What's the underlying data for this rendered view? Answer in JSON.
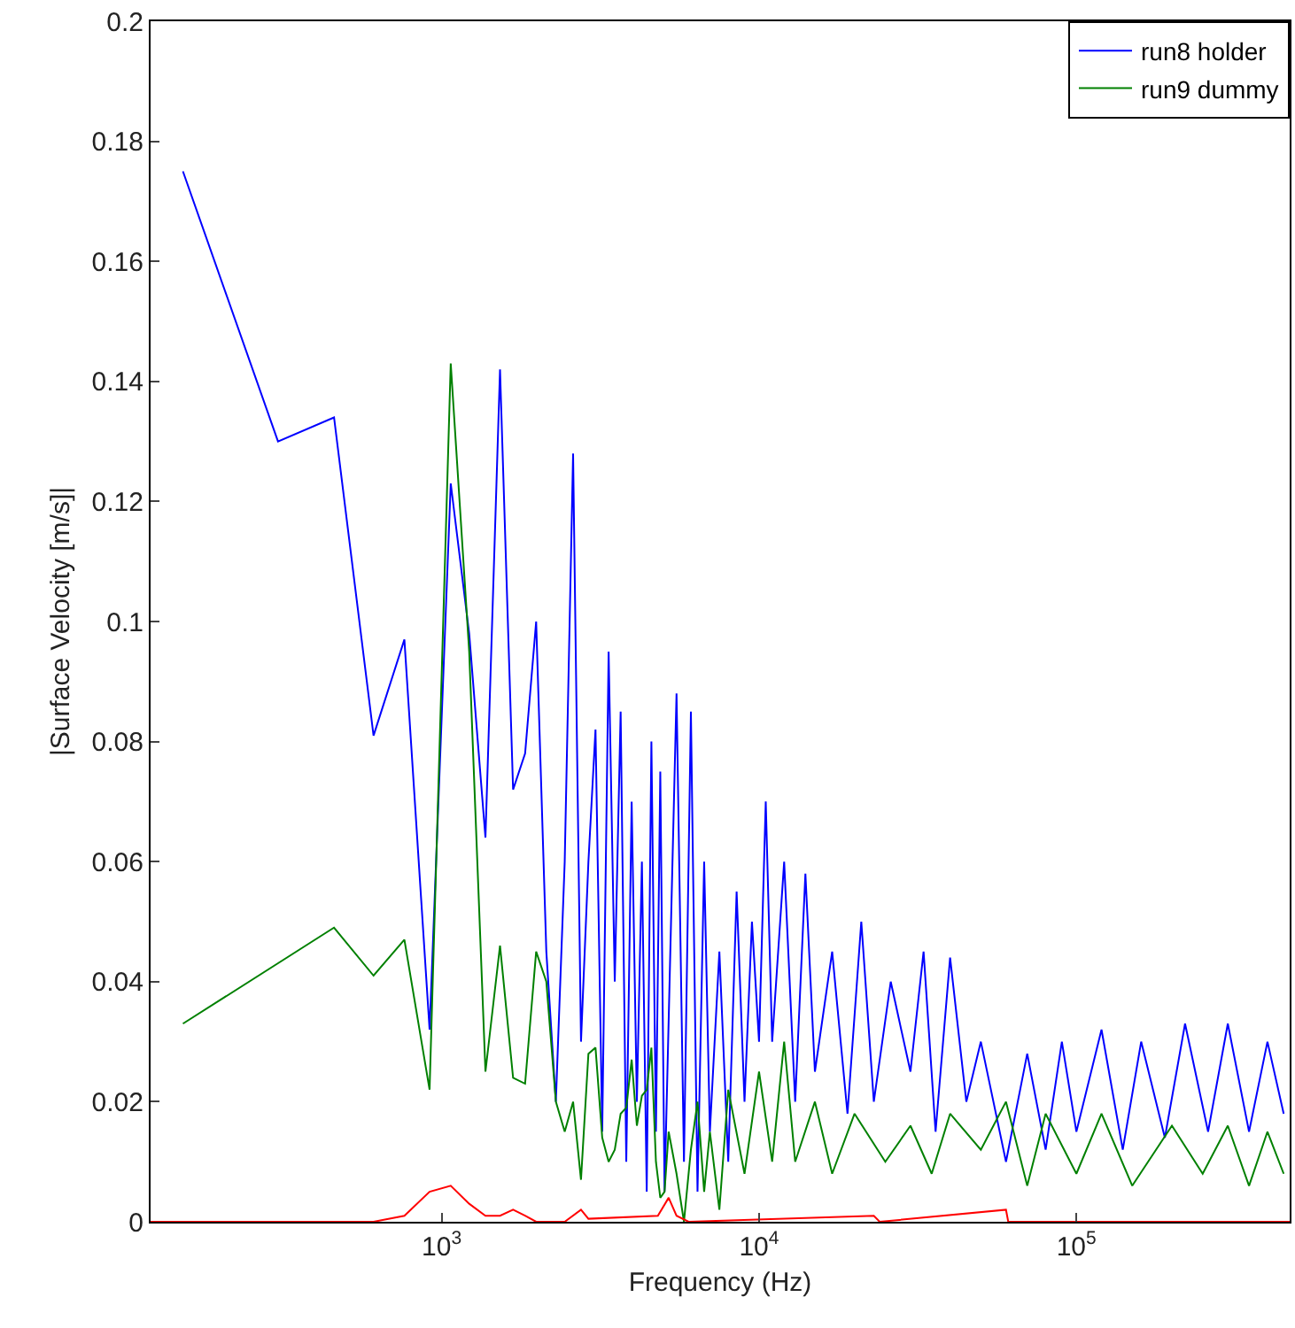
{
  "chart_data": {
    "type": "line",
    "xlabel": "Frequency (Hz)",
    "ylabel": "|Surface Velocity [m/s]|",
    "log": "x",
    "xlim": [
      121,
      470000
    ],
    "ylim": [
      0,
      0.2
    ],
    "xticks": [
      {
        "value": 1000,
        "label": "10$^{3}$"
      },
      {
        "value": 10000,
        "label": "10$^{4}$"
      },
      {
        "value": 100000,
        "label": "10$^{5}$"
      }
    ],
    "yticks": [
      0,
      0.02,
      0.04,
      0.06,
      0.08,
      0.1,
      0.12,
      0.14,
      0.16,
      0.18,
      0.2
    ],
    "legend": "top right",
    "marker": "none",
    "line_style": "solid",
    "series": [
      {
        "name": "run8 holder",
        "color": "#0000ff",
        "x": [
          153,
          305,
          458,
          610,
          763,
          916,
          1068,
          1221,
          1374,
          1527,
          1679,
          1832,
          1985,
          2137,
          2290,
          2442,
          2595,
          2748,
          2900,
          3053,
          3206,
          3358,
          3511,
          3664,
          3817,
          3969,
          4122,
          4275,
          4427,
          4580,
          4733,
          4885,
          5038,
          5496,
          5800,
          6100,
          6400,
          6716,
          7000,
          7500,
          8000,
          8500,
          9000,
          9500,
          10000,
          10500,
          11000,
          12000,
          13000,
          14000,
          15000,
          17000,
          19000,
          21000,
          23000,
          26000,
          30000,
          33000,
          36000,
          40000,
          45000,
          50000,
          60000,
          70000,
          80000,
          90000,
          100000,
          120000,
          140000,
          160000,
          190000,
          220000,
          260000,
          300000,
          350000,
          400000,
          450000
        ],
        "values": [
          0.175,
          0.13,
          0.134,
          0.081,
          0.097,
          0.032,
          0.123,
          0.098,
          0.064,
          0.142,
          0.072,
          0.078,
          0.1,
          0.045,
          0.02,
          0.06,
          0.128,
          0.03,
          0.06,
          0.082,
          0.015,
          0.095,
          0.04,
          0.085,
          0.01,
          0.07,
          0.02,
          0.06,
          0.005,
          0.08,
          0.015,
          0.075,
          0.005,
          0.088,
          0.01,
          0.085,
          0.005,
          0.06,
          0.015,
          0.045,
          0.01,
          0.055,
          0.02,
          0.05,
          0.03,
          0.07,
          0.03,
          0.06,
          0.02,
          0.058,
          0.025,
          0.045,
          0.018,
          0.05,
          0.02,
          0.04,
          0.025,
          0.045,
          0.015,
          0.044,
          0.02,
          0.03,
          0.01,
          0.028,
          0.012,
          0.03,
          0.015,
          0.032,
          0.012,
          0.03,
          0.014,
          0.033,
          0.015,
          0.033,
          0.015,
          0.03,
          0.018
        ]
      },
      {
        "name": "run9 dummy",
        "color": "#008000",
        "x": [
          153,
          458,
          610,
          763,
          916,
          1068,
          1221,
          1374,
          1527,
          1679,
          1832,
          1985,
          2137,
          2290,
          2442,
          2595,
          2748,
          2900,
          3053,
          3206,
          3358,
          3511,
          3664,
          3817,
          3969,
          4122,
          4275,
          4427,
          4580,
          4733,
          4885,
          5038,
          5191,
          5496,
          5800,
          6100,
          6400,
          6716,
          7000,
          7500,
          8000,
          9000,
          10000,
          11000,
          12000,
          13000,
          15000,
          17000,
          20000,
          25000,
          30000,
          35000,
          40000,
          50000,
          60000,
          70000,
          80000,
          100000,
          120000,
          150000,
          200000,
          250000,
          300000,
          350000,
          400000,
          450000
        ],
        "values": [
          0.033,
          0.049,
          0.041,
          0.047,
          0.022,
          0.143,
          0.095,
          0.025,
          0.046,
          0.024,
          0.023,
          0.045,
          0.04,
          0.02,
          0.015,
          0.02,
          0.007,
          0.028,
          0.029,
          0.014,
          0.01,
          0.012,
          0.018,
          0.019,
          0.027,
          0.016,
          0.021,
          0.022,
          0.029,
          0.01,
          0.004,
          0.005,
          0.015,
          0.008,
          0.0,
          0.012,
          0.02,
          0.005,
          0.015,
          0.002,
          0.022,
          0.008,
          0.025,
          0.01,
          0.03,
          0.01,
          0.02,
          0.008,
          0.018,
          0.01,
          0.016,
          0.008,
          0.018,
          0.012,
          0.02,
          0.006,
          0.018,
          0.008,
          0.018,
          0.006,
          0.016,
          0.008,
          0.016,
          0.006,
          0.015,
          0.008
        ]
      },
      {
        "color": "#ff0000",
        "x": [
          121,
          610,
          763,
          916,
          1068,
          1221,
          1374,
          1527,
          1679,
          1832,
          1985,
          2442,
          2748,
          2900,
          4800,
          5191,
          5496,
          6000,
          23000,
          24000,
          60000,
          61000,
          470000
        ],
        "values": [
          0,
          0,
          0.001,
          0.005,
          0.006,
          0.003,
          0.001,
          0.001,
          0.002,
          0.001,
          0,
          0,
          0.002,
          0.0005,
          0.001,
          0.004,
          0.001,
          0,
          0.001,
          0,
          0.002,
          0,
          0
        ]
      }
    ]
  }
}
